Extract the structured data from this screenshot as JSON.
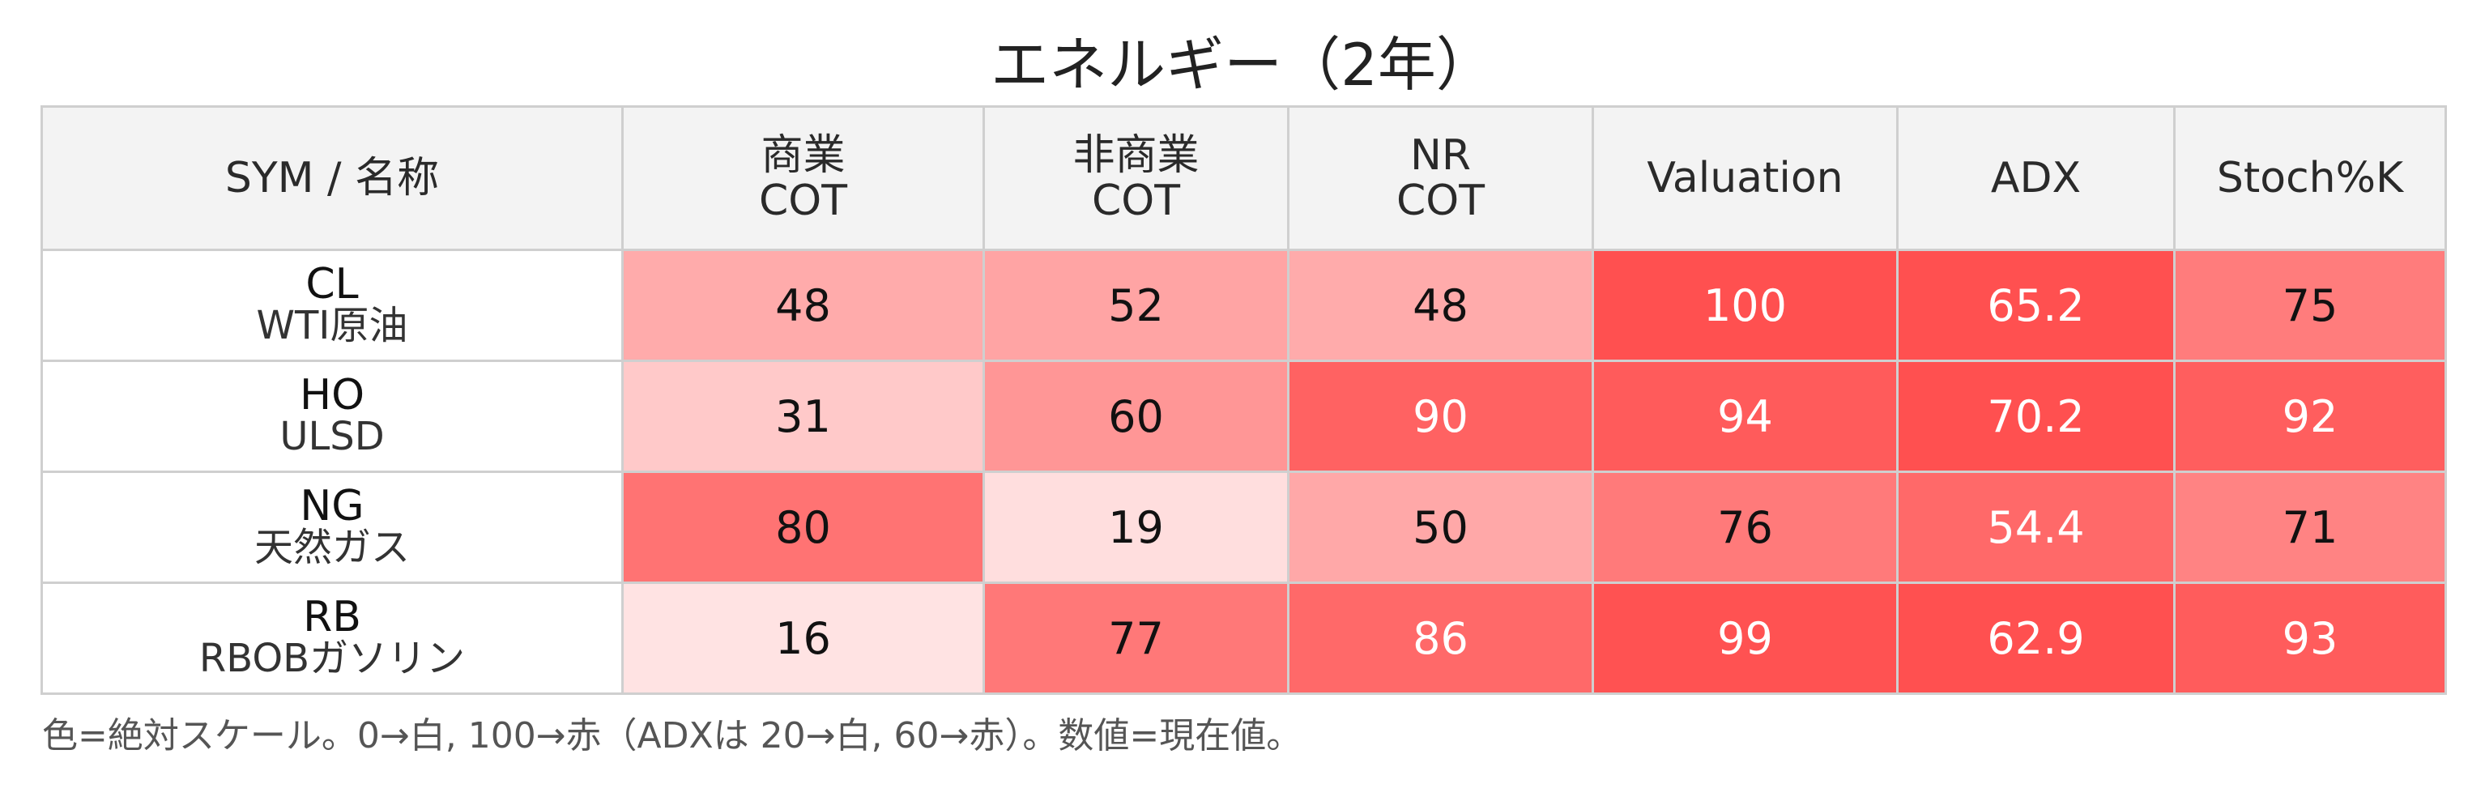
{
  "title": "エネルギー（2年）",
  "headers": [
    {
      "key": "sym",
      "lines": [
        "SYM / 名称"
      ]
    },
    {
      "key": "commercial_cot",
      "lines": [
        "商業",
        "COT"
      ]
    },
    {
      "key": "noncommercial_cot",
      "lines": [
        "非商業",
        "COT"
      ]
    },
    {
      "key": "nr_cot",
      "lines": [
        "NR",
        "COT"
      ]
    },
    {
      "key": "valuation",
      "lines": [
        "Valuation"
      ]
    },
    {
      "key": "adx",
      "lines": [
        "ADX"
      ]
    },
    {
      "key": "stoch",
      "lines": [
        "Stoch%K"
      ]
    }
  ],
  "rows": [
    {
      "sym": "CL",
      "name": "WTI原油",
      "values": [
        "48",
        "52",
        "48",
        "100",
        "65.2",
        "75"
      ]
    },
    {
      "sym": "HO",
      "name": "ULSD",
      "values": [
        "31",
        "60",
        "90",
        "94",
        "70.2",
        "92"
      ]
    },
    {
      "sym": "NG",
      "name": "天然ガス",
      "values": [
        "80",
        "19",
        "50",
        "76",
        "54.4",
        "71"
      ]
    },
    {
      "sym": "RB",
      "name": "RBOBガソリン",
      "values": [
        "16",
        "77",
        "86",
        "99",
        "62.9",
        "93"
      ]
    }
  ],
  "note": "色=絶対スケール。0→白, 100→赤（ADXは 20→白, 60→赤）。数値=現在値。",
  "colors": {
    "low": "#ffffff",
    "high": "#ff5050",
    "grid": "#cfcfcf",
    "header_bg": "#f3f3f3"
  },
  "chart_data": {
    "type": "heatmap",
    "title": "エネルギー（2年）",
    "columns": [
      "商業 COT",
      "非商業 COT",
      "NR COT",
      "Valuation",
      "ADX",
      "Stoch%K"
    ],
    "rows": [
      "CL WTI原油",
      "HO ULSD",
      "NG 天然ガス",
      "RB RBOBガソリン"
    ],
    "values": [
      [
        48,
        52,
        48,
        100,
        65.2,
        75
      ],
      [
        31,
        60,
        90,
        94,
        70.2,
        92
      ],
      [
        80,
        19,
        50,
        76,
        54.4,
        71
      ],
      [
        16,
        77,
        86,
        99,
        62.9,
        93
      ]
    ],
    "color_scale": {
      "default": [
        0,
        100
      ],
      "ADX": [
        20,
        60
      ]
    }
  }
}
